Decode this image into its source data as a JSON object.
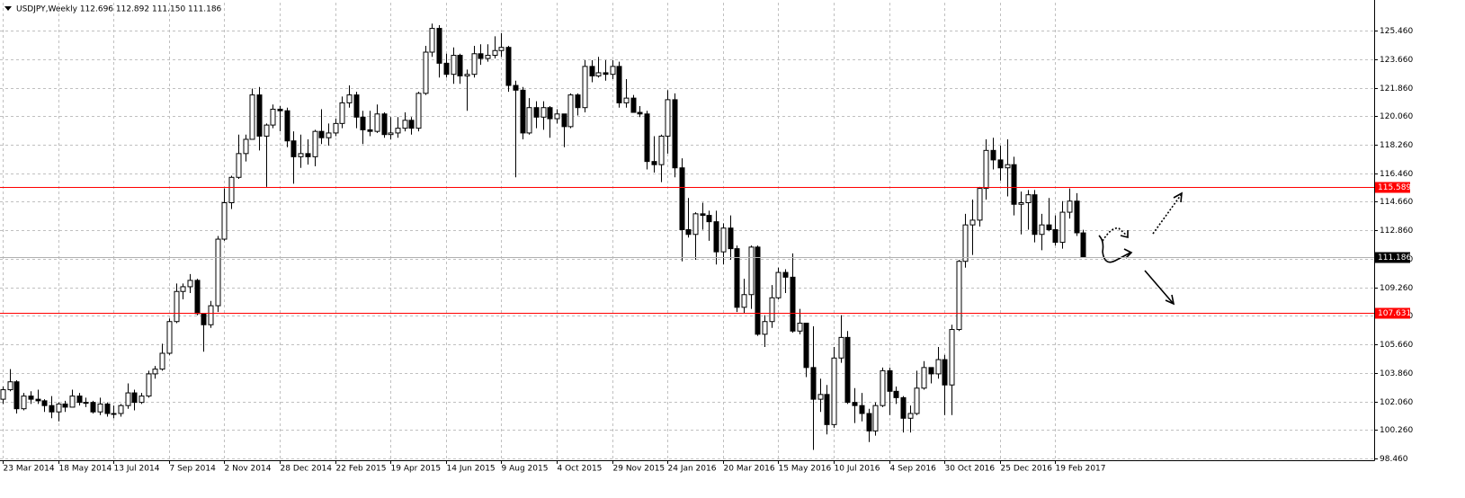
{
  "chart_data": {
    "type": "candlestick",
    "title": "USDJPY,Weekly  112.696 112.892 111.150 111.186",
    "x": [
      "23 Mar 2014",
      null,
      null,
      null,
      null,
      null,
      null,
      null,
      "18 May 2014",
      null,
      null,
      null,
      null,
      null,
      null,
      null,
      "13 Jul 2014",
      null,
      null,
      null,
      null,
      null,
      null,
      null,
      "7 Sep 2014",
      null,
      null,
      null,
      null,
      null,
      null,
      null,
      "2 Nov 2014",
      null,
      null,
      null,
      null,
      null,
      null,
      null,
      "28 Dec 2014",
      null,
      null,
      null,
      null,
      null,
      null,
      null,
      "22 Feb 2015",
      null,
      null,
      null,
      null,
      null,
      null,
      null,
      "19 Apr 2015",
      null,
      null,
      null,
      null,
      null,
      null,
      null,
      "14 Jun 2015",
      null,
      null,
      null,
      null,
      null,
      null,
      null,
      "9 Aug 2015",
      null,
      null,
      null,
      null,
      null,
      null,
      null,
      "4 Oct 2015",
      null,
      null,
      null,
      null,
      null,
      null,
      null,
      "29 Nov 2015",
      null,
      null,
      null,
      null,
      null,
      null,
      null,
      "24 Jan 2016",
      null,
      null,
      null,
      null,
      null,
      null,
      null,
      "20 Mar 2016",
      null,
      null,
      null,
      null,
      null,
      null,
      null,
      "15 May 2016",
      null,
      null,
      null,
      null,
      null,
      null,
      null,
      "10 Jul 2016",
      null,
      null,
      null,
      null,
      null,
      null,
      null,
      "4 Sep 2016",
      null,
      null,
      null,
      null,
      null,
      null,
      null,
      "30 Oct 2016",
      null,
      null,
      null,
      null,
      null,
      null,
      null,
      "25 Dec 2016",
      null,
      null,
      null,
      null,
      null,
      null,
      null,
      "19 Feb 2017",
      null,
      null,
      null,
      null
    ],
    "open": [
      102.2,
      102.8,
      103.3,
      101.6,
      102.4,
      102.2,
      102.1,
      101.8,
      101.4,
      101.9,
      101.7,
      102.4,
      102.0,
      102.0,
      101.4,
      101.9,
      101.3,
      101.3,
      101.8,
      102.6,
      102.0,
      102.4,
      103.8,
      104.1,
      105.1,
      107.1,
      109.0,
      109.3,
      109.7,
      107.6,
      106.9,
      108.1,
      112.3,
      114.6,
      116.2,
      117.7,
      118.6,
      121.4,
      118.8,
      119.5,
      120.5,
      120.4,
      118.5,
      117.5,
      117.7,
      117.5,
      119.1,
      118.7,
      119.0,
      119.6,
      120.9,
      121.4,
      120.0,
      119.2,
      119.1,
      120.2,
      118.9,
      119.0,
      119.3,
      119.8,
      119.3,
      121.5,
      124.1,
      125.6,
      123.4,
      122.7,
      123.9,
      122.6,
      122.7,
      124.0,
      123.7,
      123.9,
      124.2,
      124.4,
      122.0,
      121.7,
      119.0,
      120.6,
      120.0,
      120.6,
      119.9,
      120.2,
      119.4,
      121.4,
      120.6,
      123.2,
      122.6,
      122.8,
      122.7,
      123.2,
      120.9,
      121.2,
      120.3,
      120.2,
      117.2,
      117.0,
      118.8,
      121.1,
      116.8,
      112.9,
      112.6,
      113.9,
      113.8,
      113.4,
      111.5,
      113.0,
      111.7,
      108.0,
      108.8,
      111.8,
      106.3,
      107.1,
      108.6,
      110.2,
      109.9,
      106.5,
      107.0,
      104.2,
      102.2,
      102.5,
      100.6,
      104.8,
      106.1,
      102.0,
      101.8,
      101.3,
      100.2,
      101.8,
      104.0,
      102.7,
      102.3,
      101.0,
      101.3,
      102.9,
      104.2,
      103.8,
      104.7,
      103.1,
      106.6,
      110.9,
      113.2,
      113.5,
      115.5,
      117.9,
      117.3,
      116.8,
      117.0,
      114.5,
      114.6,
      115.1,
      112.6,
      113.2,
      112.9,
      112.1,
      114.0,
      114.7,
      112.696
    ],
    "high": [
      103.0,
      104.1,
      103.4,
      102.6,
      102.7,
      102.8,
      102.2,
      102.4,
      102.0,
      102.1,
      102.8,
      102.6,
      102.3,
      102.1,
      102.3,
      102.0,
      101.8,
      101.9,
      103.2,
      102.8,
      102.6,
      104.0,
      104.3,
      105.7,
      107.3,
      109.5,
      109.5,
      110.1,
      109.8,
      107.6,
      108.4,
      112.5,
      115.5,
      116.3,
      118.9,
      118.9,
      121.8,
      121.9,
      119.6,
      120.8,
      120.7,
      120.6,
      119.1,
      118.9,
      118.6,
      119.2,
      120.5,
      119.6,
      119.9,
      121.3,
      122.0,
      121.6,
      120.4,
      120.4,
      120.8,
      120.3,
      120.0,
      120.0,
      120.3,
      120.0,
      121.6,
      124.5,
      125.9,
      125.8,
      124.0,
      124.4,
      124.0,
      123.0,
      124.5,
      124.6,
      124.6,
      125.1,
      125.3,
      124.5,
      122.3,
      121.9,
      121.2,
      121.0,
      121.0,
      120.7,
      120.5,
      120.2,
      121.5,
      121.5,
      123.6,
      123.6,
      123.8,
      123.6,
      123.6,
      123.5,
      122.4,
      121.4,
      120.7,
      120.4,
      118.8,
      118.9,
      121.7,
      121.5,
      117.4,
      114.9,
      114.0,
      114.6,
      114.1,
      114.1,
      113.3,
      113.8,
      111.9,
      109.8,
      111.9,
      111.9,
      107.5,
      109.4,
      110.5,
      110.4,
      111.4,
      107.9,
      107.0,
      106.8,
      103.5,
      103.1,
      105.5,
      107.5,
      106.5,
      102.9,
      102.6,
      101.6,
      102.0,
      104.2,
      104.2,
      103.0,
      102.4,
      101.8,
      104.0,
      104.6,
      104.2,
      105.5,
      105.0,
      106.9,
      111.0,
      113.9,
      114.8,
      115.6,
      118.6,
      118.7,
      118.2,
      118.6,
      117.5,
      115.3,
      115.4,
      115.4,
      113.9,
      114.9,
      113.8,
      114.7,
      115.5,
      115.2,
      112.892
    ],
    "low": [
      101.9,
      102.7,
      101.3,
      101.5,
      101.9,
      101.9,
      101.4,
      101.0,
      100.8,
      101.4,
      101.7,
      101.8,
      101.7,
      101.3,
      101.2,
      101.1,
      101.0,
      101.1,
      101.6,
      101.5,
      101.9,
      102.3,
      103.5,
      104.0,
      105.0,
      107.0,
      108.5,
      108.9,
      107.5,
      105.2,
      106.7,
      107.7,
      112.2,
      114.2,
      116.1,
      117.2,
      118.6,
      117.9,
      115.6,
      119.3,
      119.1,
      118.1,
      115.8,
      116.8,
      117.0,
      116.9,
      118.3,
      118.2,
      118.8,
      119.3,
      120.6,
      119.3,
      118.3,
      118.8,
      119.0,
      118.7,
      118.6,
      118.7,
      119.1,
      118.9,
      119.1,
      121.4,
      123.8,
      122.5,
      122.5,
      122.1,
      122.1,
      120.4,
      122.5,
      123.3,
      123.5,
      123.7,
      123.8,
      121.6,
      116.2,
      118.6,
      118.9,
      119.3,
      119.2,
      118.7,
      119.6,
      118.1,
      119.3,
      120.1,
      120.3,
      122.2,
      122.5,
      122.3,
      122.4,
      120.6,
      120.6,
      120.3,
      120.0,
      116.7,
      116.5,
      115.9,
      117.7,
      116.2,
      110.9,
      112.4,
      111.0,
      112.9,
      112.2,
      110.7,
      110.7,
      111.0,
      107.7,
      107.6,
      107.9,
      106.2,
      105.5,
      106.7,
      108.5,
      108.9,
      106.4,
      106.3,
      103.6,
      99.0,
      101.4,
      99.98,
      100.4,
      104.5,
      101.9,
      100.7,
      100.8,
      99.5,
      99.9,
      101.7,
      101.2,
      101.9,
      100.1,
      100.1,
      101.2,
      102.8,
      103.2,
      103.5,
      101.2,
      101.2,
      106.5,
      110.5,
      111.3,
      113.1,
      114.8,
      116.7,
      116.0,
      115.0,
      113.8,
      112.6,
      112.9,
      112.1,
      111.6,
      112.8,
      111.9,
      111.7,
      113.6,
      112.5,
      111.15
    ],
    "close": [
      102.8,
      103.3,
      101.6,
      102.4,
      102.2,
      102.1,
      101.8,
      101.4,
      101.9,
      101.7,
      102.4,
      102.0,
      102.0,
      101.4,
      101.9,
      101.3,
      101.3,
      101.8,
      102.6,
      102.0,
      102.4,
      103.8,
      104.1,
      105.1,
      107.1,
      109.0,
      109.3,
      109.7,
      107.6,
      106.9,
      108.1,
      112.3,
      114.6,
      116.2,
      117.7,
      118.6,
      121.4,
      118.8,
      119.5,
      120.5,
      120.4,
      118.5,
      117.5,
      117.7,
      117.5,
      119.1,
      118.7,
      119.0,
      119.6,
      120.9,
      121.4,
      120.0,
      119.2,
      119.1,
      120.2,
      118.9,
      119.0,
      119.3,
      119.8,
      119.3,
      121.5,
      124.1,
      125.6,
      123.4,
      122.7,
      123.9,
      122.6,
      122.7,
      124.0,
      123.7,
      123.9,
      124.2,
      124.4,
      122.0,
      121.7,
      119.0,
      120.6,
      120.0,
      120.6,
      119.9,
      120.2,
      119.4,
      121.4,
      120.6,
      123.2,
      122.6,
      122.8,
      122.7,
      123.2,
      120.9,
      121.2,
      120.3,
      120.2,
      117.2,
      117.0,
      118.8,
      121.1,
      116.8,
      112.9,
      112.6,
      113.9,
      113.8,
      113.4,
      111.5,
      113.0,
      111.7,
      108.0,
      108.8,
      111.8,
      106.3,
      107.1,
      108.6,
      110.2,
      109.9,
      106.5,
      107.0,
      104.2,
      102.2,
      102.5,
      100.6,
      104.8,
      106.1,
      102.0,
      101.8,
      101.3,
      100.2,
      101.8,
      104.0,
      102.7,
      102.3,
      101.0,
      101.3,
      102.9,
      104.2,
      103.8,
      104.7,
      103.1,
      106.6,
      110.9,
      113.2,
      113.5,
      115.5,
      117.9,
      117.3,
      116.8,
      117.0,
      114.5,
      114.6,
      115.1,
      112.6,
      113.2,
      112.9,
      112.1,
      114.0,
      114.7,
      112.7,
      111.186
    ],
    "bull_color": "#ffffff",
    "bear_color": "#000000",
    "ylim": [
      98.35,
      127.22
    ],
    "yticks": [
      {
        "value": 98.46,
        "label": "98.460"
      },
      {
        "value": 100.26,
        "label": "100.260"
      },
      {
        "value": 102.06,
        "label": "102.060"
      },
      {
        "value": 103.86,
        "label": "103.860"
      },
      {
        "value": 105.66,
        "label": "105.660"
      },
      {
        "value": 107.46,
        "label": "107.460"
      },
      {
        "value": 109.26,
        "label": "109.260"
      },
      {
        "value": 111.06,
        "label": "111.060"
      },
      {
        "value": 112.86,
        "label": "112.860"
      },
      {
        "value": 114.66,
        "label": "114.660"
      },
      {
        "value": 116.46,
        "label": "116.460"
      },
      {
        "value": 118.26,
        "label": "118.260"
      },
      {
        "value": 120.06,
        "label": "120.060"
      },
      {
        "value": 121.86,
        "label": "121.860"
      },
      {
        "value": 123.66,
        "label": "123.660"
      },
      {
        "value": 125.46,
        "label": "125.460"
      }
    ],
    "grid": true,
    "hlines": [
      {
        "value": 115.589,
        "color": "#ff0000"
      },
      {
        "value": 107.631,
        "color": "#ff0000"
      }
    ],
    "price_line": {
      "value": 111.186,
      "color": "#000000"
    }
  }
}
